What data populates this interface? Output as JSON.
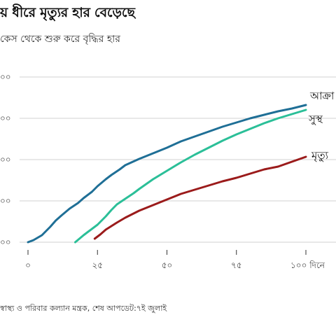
{
  "title": "য় ধীরে মৃত্যুর হার বেড়েছে",
  "subtitle": "কেস থেকে শুরু করে বৃদ্ধির হার",
  "source": "স্বাস্থ্য ও পরিবার কল্যান মন্ত্রক, শেষ আপডেট:৭ই জুলাই",
  "colors": {
    "confirmed": "#1f6f96",
    "recovered": "#2bbf98",
    "deaths": "#9b1b1b",
    "grid": "#d0d0d0",
    "axis": "#333333"
  },
  "chart_data": {
    "type": "line",
    "xlim": [
      0,
      100
    ],
    "x_tick_values": [
      0,
      25,
      50,
      75,
      100
    ],
    "x_tick_labels": [
      "০",
      "২৫",
      "৫০",
      "৭৫",
      "১০০ দিনে"
    ],
    "y_tick_labels": [
      "০০",
      "০০",
      "০০",
      "০০",
      "০০"
    ],
    "grid": true,
    "series": [
      {
        "key": "confirmed",
        "name": "আক্রা",
        "x": [
          0,
          2,
          5,
          8,
          10,
          12,
          15,
          18,
          20,
          23,
          25,
          28,
          30,
          33,
          35,
          40,
          45,
          50,
          55,
          60,
          65,
          70,
          75,
          80,
          85,
          90,
          95,
          100
        ],
        "y": [
          0,
          3,
          10,
          22,
          31,
          38,
          48,
          56,
          63,
          72,
          80,
          90,
          96,
          104,
          110,
          119,
          127,
          135,
          144,
          151,
          158,
          165,
          171,
          177,
          182,
          187,
          191,
          196
        ]
      },
      {
        "key": "recovered",
        "name": "সুস্থ",
        "x": [
          17,
          20,
          22,
          25,
          28,
          30,
          32,
          35,
          38,
          40,
          45,
          50,
          55,
          60,
          65,
          70,
          75,
          80,
          85,
          90,
          95,
          100
        ],
        "y": [
          0,
          10,
          16,
          25,
          37,
          46,
          54,
          62,
          70,
          76,
          90,
          102,
          114,
          125,
          135,
          145,
          154,
          162,
          170,
          177,
          183,
          189
        ]
      },
      {
        "key": "deaths",
        "name": "মৃত্যু",
        "x": [
          24,
          26,
          28,
          30,
          32,
          35,
          40,
          45,
          50,
          55,
          60,
          65,
          70,
          75,
          80,
          85,
          90,
          95,
          100
        ],
        "y": [
          5,
          11,
          18,
          23,
          28,
          35,
          45,
          53,
          61,
          69,
          75,
          81,
          87,
          92,
          98,
          104,
          108,
          115,
          122
        ]
      }
    ]
  }
}
